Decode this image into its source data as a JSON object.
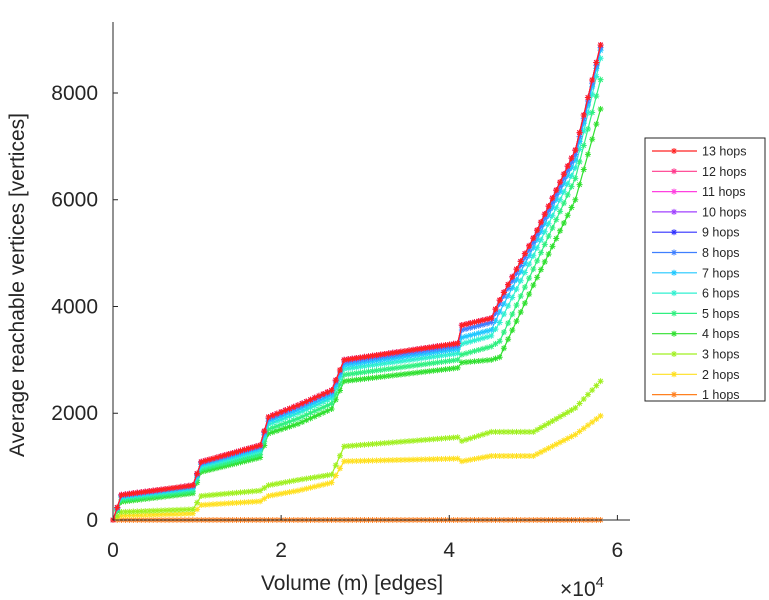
{
  "chart_data": {
    "type": "line",
    "xlabel": "Volume (m) [edges]",
    "x_multiplier": "×10",
    "x_multiplier_exp": "4",
    "ylabel": "Average reachable vertices [vertices]",
    "xlim": [
      0,
      6.15
    ],
    "ylim": [
      0,
      9330
    ],
    "xticks": [
      "0",
      "2",
      "4",
      "6"
    ],
    "xtick_values": [
      0,
      2,
      4,
      6
    ],
    "yticks": [
      "0",
      "2000",
      "4000",
      "6000",
      "8000"
    ],
    "ytick_values": [
      0,
      2000,
      4000,
      6000,
      8000
    ],
    "legend_position": "right",
    "x": [
      0,
      0.1,
      0.95,
      1.05,
      1.75,
      1.85,
      2.2,
      2.6,
      2.75,
      4.1,
      4.15,
      4.5,
      4.6,
      5.0,
      5.5,
      5.8
    ],
    "series": [
      {
        "name": "13 hops",
        "color": "#ff2020",
        "values": [
          0,
          470,
          650,
          1090,
          1400,
          1930,
          2150,
          2430,
          3000,
          3310,
          3650,
          3780,
          4120,
          5280,
          6930,
          8900
        ]
      },
      {
        "name": "12 hops",
        "color": "#ff3a8c",
        "values": [
          0,
          470,
          650,
          1090,
          1400,
          1930,
          2150,
          2430,
          3000,
          3310,
          3650,
          3780,
          4120,
          5280,
          6930,
          8900
        ]
      },
      {
        "name": "11 hops",
        "color": "#ff40e0",
        "values": [
          0,
          470,
          650,
          1090,
          1400,
          1930,
          2150,
          2430,
          3000,
          3310,
          3650,
          3780,
          4120,
          5280,
          6930,
          8900
        ]
      },
      {
        "name": "10 hops",
        "color": "#a040ff",
        "values": [
          0,
          470,
          650,
          1090,
          1400,
          1930,
          2150,
          2430,
          3000,
          3310,
          3650,
          3780,
          4120,
          5280,
          6930,
          8900
        ]
      },
      {
        "name": "9 hops",
        "color": "#3030ff",
        "values": [
          0,
          470,
          650,
          1090,
          1400,
          1930,
          2150,
          2430,
          3000,
          3310,
          3650,
          3780,
          4120,
          5280,
          6930,
          8900
        ]
      },
      {
        "name": "8 hops",
        "color": "#3f7fff",
        "values": [
          0,
          460,
          640,
          1070,
          1380,
          1900,
          2120,
          2400,
          2960,
          3260,
          3560,
          3700,
          4050,
          5200,
          6850,
          8850
        ]
      },
      {
        "name": "7 hops",
        "color": "#20c8ff",
        "values": [
          0,
          440,
          610,
          1040,
          1340,
          1850,
          2060,
          2340,
          2900,
          3200,
          3420,
          3560,
          3900,
          5100,
          6750,
          8800
        ]
      },
      {
        "name": "6 hops",
        "color": "#30f0d0",
        "values": [
          0,
          420,
          590,
          1000,
          1290,
          1790,
          2000,
          2280,
          2830,
          3120,
          3300,
          3450,
          3700,
          4950,
          6600,
          8650
        ]
      },
      {
        "name": "5 hops",
        "color": "#30f080",
        "values": [
          0,
          380,
          540,
          950,
          1230,
          1700,
          1900,
          2180,
          2720,
          3000,
          3100,
          3250,
          3350,
          4700,
          6400,
          8250
        ]
      },
      {
        "name": "4 hops",
        "color": "#30e030",
        "values": [
          0,
          340,
          500,
          900,
          1170,
          1620,
          1800,
          2080,
          2600,
          2850,
          2950,
          3000,
          3050,
          4400,
          6000,
          7700
        ]
      },
      {
        "name": "3 hops",
        "color": "#a0f020",
        "values": [
          0,
          150,
          200,
          450,
          550,
          650,
          750,
          850,
          1380,
          1550,
          1480,
          1650,
          1650,
          1650,
          2100,
          2600
        ]
      },
      {
        "name": "2 hops",
        "color": "#ffe020",
        "values": [
          0,
          80,
          120,
          280,
          350,
          450,
          550,
          700,
          1100,
          1150,
          1100,
          1200,
          1200,
          1200,
          1600,
          1950
        ]
      },
      {
        "name": "1 hops",
        "color": "#ff8020",
        "values": [
          0,
          0,
          0,
          0,
          0,
          0,
          0,
          0,
          0,
          0,
          0,
          0,
          0,
          0,
          0,
          0
        ]
      }
    ]
  }
}
